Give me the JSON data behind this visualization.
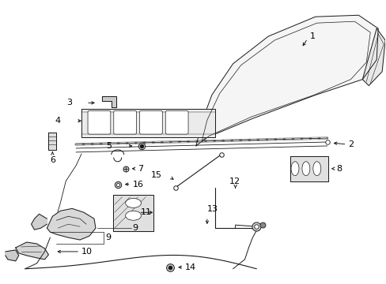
{
  "bg_color": "#ffffff",
  "lc": "#1a1a1a",
  "lw": 0.7,
  "fontsize": 7.5,
  "fig_width": 4.89,
  "fig_height": 3.6,
  "dpi": 100
}
